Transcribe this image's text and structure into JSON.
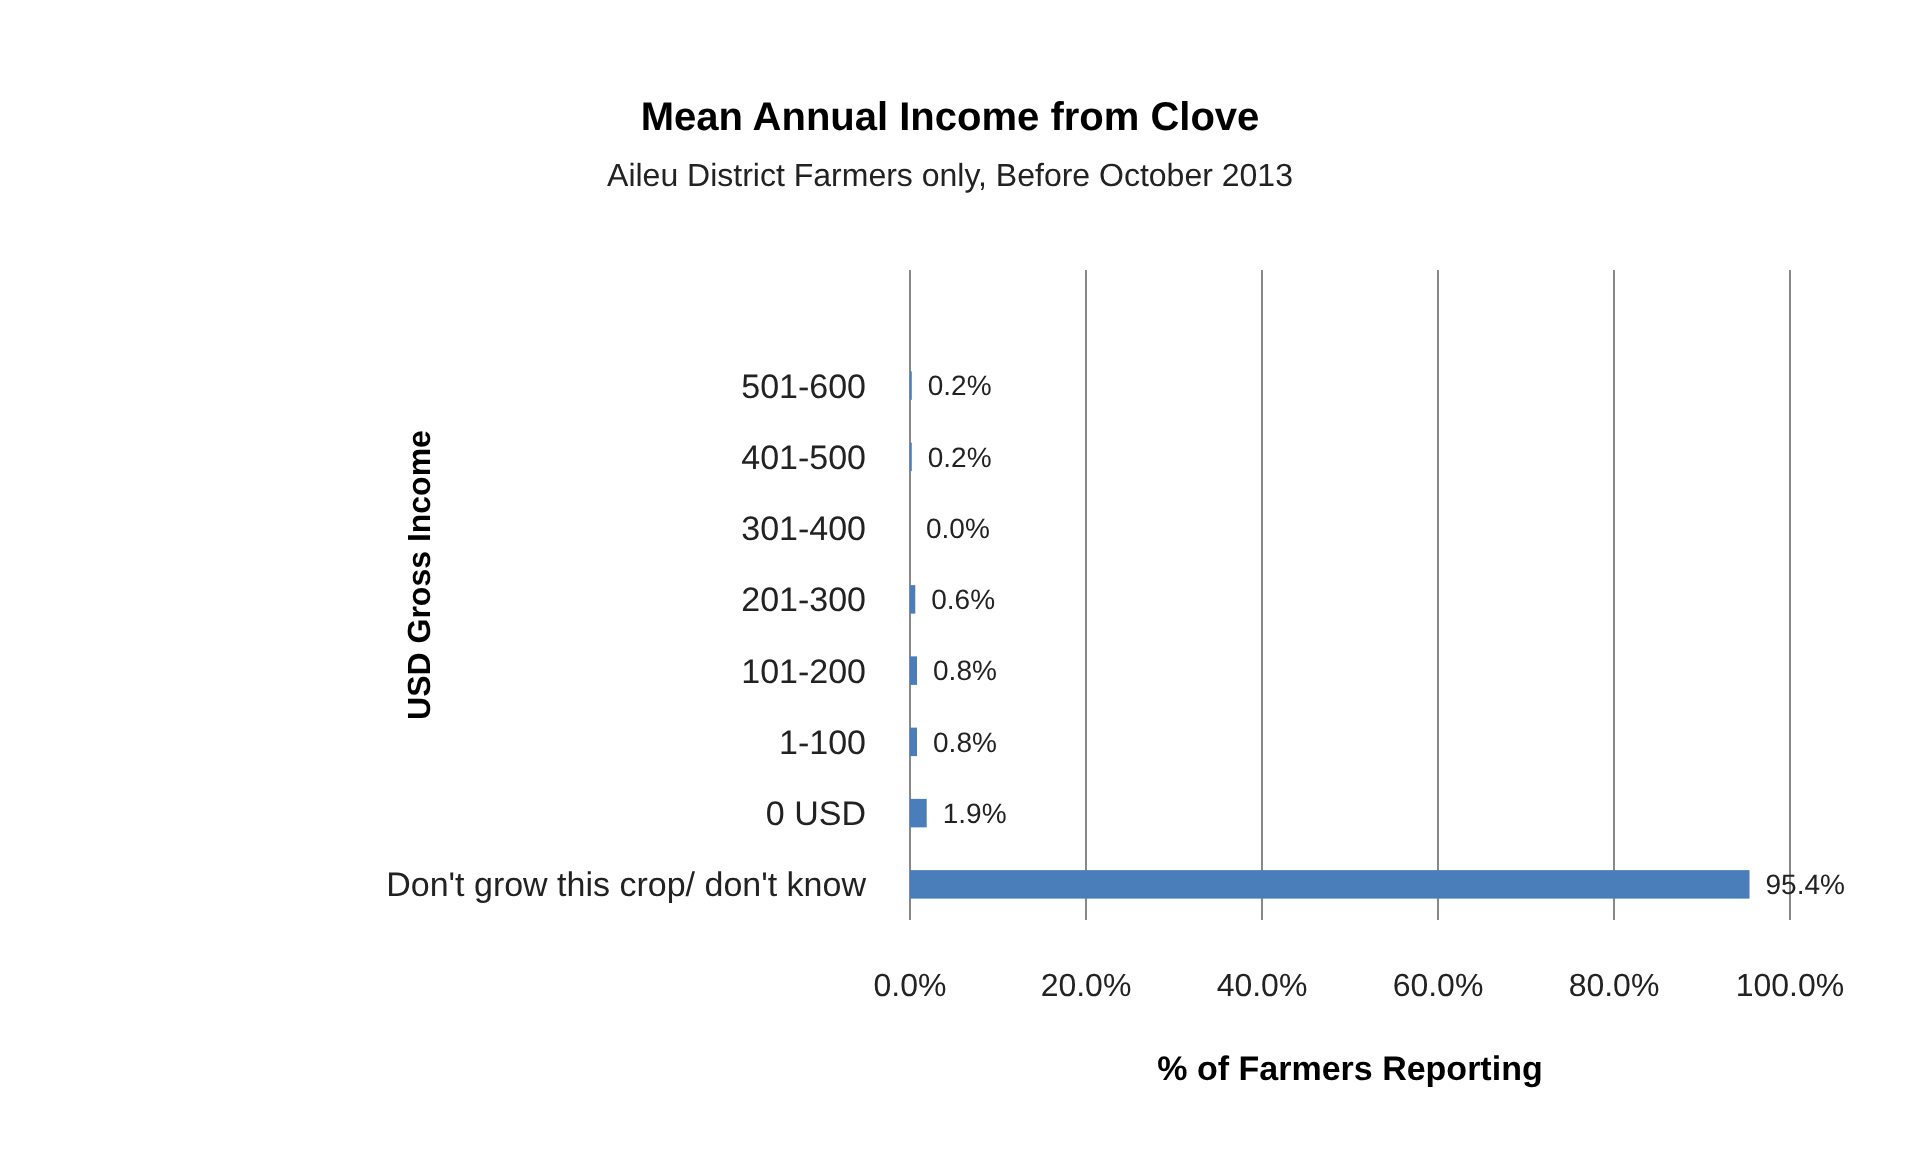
{
  "chart_data": {
    "type": "bar",
    "orientation": "horizontal",
    "title": "Mean Annual Income from Clove",
    "subtitle": "Aileu District Farmers only, Before October 2013",
    "xlabel": "% of Farmers Reporting",
    "ylabel": "USD Gross Income",
    "categories": [
      "501-600",
      "401-500",
      "301-400",
      "201-300",
      "101-200",
      "1-100",
      "0 USD",
      "Don't grow this crop/ don't know"
    ],
    "values": [
      0.2,
      0.2,
      0.0,
      0.6,
      0.8,
      0.8,
      1.9,
      95.4
    ],
    "value_labels": [
      "0.2%",
      "0.2%",
      "0.0%",
      "0.6%",
      "0.8%",
      "0.8%",
      "1.9%",
      "95.4%"
    ],
    "color": "#4a7ebb",
    "xlim": [
      0,
      100
    ],
    "xticks": [
      {
        "value": 0,
        "label": "0.0%"
      },
      {
        "value": 20,
        "label": "20.0%"
      },
      {
        "value": 40,
        "label": "40.0%"
      },
      {
        "value": 60,
        "label": "60.0%"
      },
      {
        "value": 80,
        "label": "80.0%"
      },
      {
        "value": 100,
        "label": "100.0%"
      }
    ],
    "grid": "x"
  }
}
